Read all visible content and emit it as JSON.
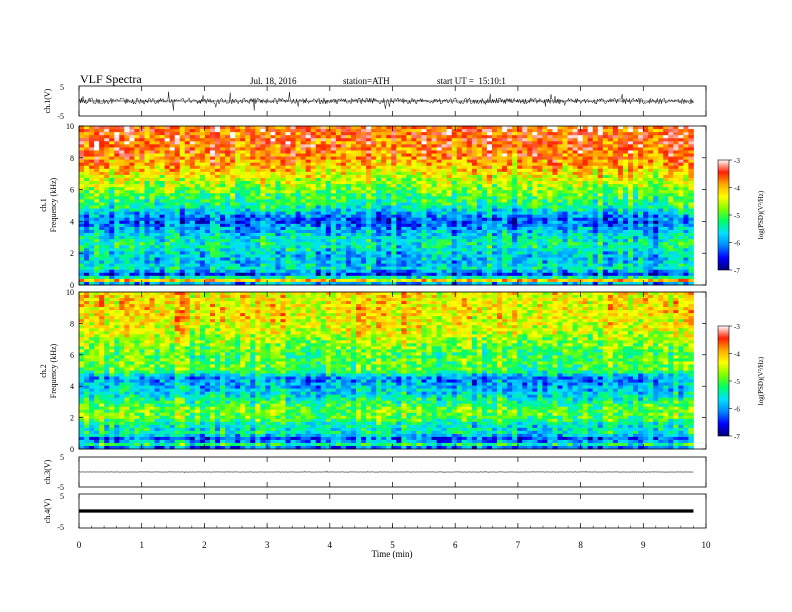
{
  "header": {
    "title": "VLF Spectra",
    "date": "Jul. 18, 2016",
    "station": "station=ATH",
    "start": "start UT =  15:10:1"
  },
  "chart_data": [
    {
      "type": "line",
      "panel": "ch1-waveform",
      "ylabel": "ch.1(V)",
      "ylim": [
        -5,
        5
      ],
      "yticks": [
        "5",
        "-5"
      ],
      "x": [
        0,
        1,
        2,
        3,
        4,
        5,
        6,
        7,
        8,
        9,
        9.8
      ],
      "values": [
        0,
        0,
        0,
        0,
        0,
        0,
        0,
        0,
        0,
        0,
        0
      ],
      "color": "#000000"
    },
    {
      "type": "heatmap",
      "panel": "ch1-spectrogram",
      "ylabel": "ch.1\nFrequency (kHz)",
      "ylabel_line1": "ch.1",
      "ylabel_line2": "Frequency (kHz)",
      "ylim": [
        0,
        10
      ],
      "yticks": [
        "0",
        "2",
        "4",
        "6",
        "8",
        "10"
      ],
      "x_range": [
        0,
        9.8
      ],
      "frequency_profile_logPSD": [
        {
          "f": 0.0,
          "v": -6.8
        },
        {
          "f": 0.3,
          "v": -4.0
        },
        {
          "f": 0.6,
          "v": -6.5
        },
        {
          "f": 1.0,
          "v": -5.6
        },
        {
          "f": 1.5,
          "v": -5.8
        },
        {
          "f": 2.0,
          "v": -5.7
        },
        {
          "f": 2.5,
          "v": -5.4
        },
        {
          "f": 3.0,
          "v": -5.6
        },
        {
          "f": 3.5,
          "v": -5.9
        },
        {
          "f": 4.0,
          "v": -6.3
        },
        {
          "f": 4.5,
          "v": -5.9
        },
        {
          "f": 5.0,
          "v": -5.3
        },
        {
          "f": 5.5,
          "v": -5.1
        },
        {
          "f": 6.0,
          "v": -4.9
        },
        {
          "f": 6.5,
          "v": -4.6
        },
        {
          "f": 7.0,
          "v": -4.3
        },
        {
          "f": 7.5,
          "v": -4.0
        },
        {
          "f": 8.0,
          "v": -3.8
        },
        {
          "f": 9.0,
          "v": -3.6
        },
        {
          "f": 10.0,
          "v": -3.6
        }
      ]
    },
    {
      "type": "heatmap",
      "panel": "ch2-spectrogram",
      "ylabel": "ch.2\nFrequency (kHz)",
      "ylabel_line1": "ch.2",
      "ylabel_line2": "Frequency (kHz)",
      "ylim": [
        0,
        10
      ],
      "yticks": [
        "0",
        "2",
        "4",
        "6",
        "8",
        "10"
      ],
      "x_range": [
        0,
        9.8
      ],
      "frequency_profile_logPSD": [
        {
          "f": 0.0,
          "v": -6.6
        },
        {
          "f": 0.3,
          "v": -5.2
        },
        {
          "f": 0.6,
          "v": -6.4
        },
        {
          "f": 1.0,
          "v": -5.4
        },
        {
          "f": 1.5,
          "v": -5.5
        },
        {
          "f": 2.0,
          "v": -4.9
        },
        {
          "f": 2.5,
          "v": -4.8
        },
        {
          "f": 3.0,
          "v": -5.2
        },
        {
          "f": 3.5,
          "v": -5.6
        },
        {
          "f": 4.0,
          "v": -5.8
        },
        {
          "f": 4.5,
          "v": -6.0
        },
        {
          "f": 5.0,
          "v": -5.0
        },
        {
          "f": 5.5,
          "v": -4.9
        },
        {
          "f": 6.0,
          "v": -5.0
        },
        {
          "f": 6.5,
          "v": -4.8
        },
        {
          "f": 7.0,
          "v": -4.6
        },
        {
          "f": 7.5,
          "v": -4.4
        },
        {
          "f": 8.0,
          "v": -4.3
        },
        {
          "f": 9.0,
          "v": -4.2
        },
        {
          "f": 10.0,
          "v": -4.2
        }
      ]
    },
    {
      "type": "line",
      "panel": "ch3-waveform",
      "ylabel": "ch.3(V)",
      "ylim": [
        -5,
        5
      ],
      "yticks": [
        "5",
        "-5"
      ],
      "x": [
        0,
        1,
        2,
        3,
        4,
        5,
        6,
        7,
        8,
        9,
        9.8
      ],
      "values": [
        0,
        0,
        0,
        0,
        0,
        0,
        0,
        0,
        0,
        0,
        0
      ],
      "color": "#444444"
    },
    {
      "type": "line",
      "panel": "ch4-waveform",
      "ylabel": "ch.4(V)",
      "ylim": [
        -5,
        5
      ],
      "yticks": [
        "5",
        "-5"
      ],
      "x": [
        0,
        1,
        2,
        3,
        4,
        5,
        6,
        7,
        8,
        9,
        9.8
      ],
      "values": [
        0,
        0,
        0,
        0,
        0,
        0,
        0,
        0,
        0,
        0,
        0
      ],
      "color": "#000000"
    }
  ],
  "x_axis": {
    "label": "Time (min)",
    "xlim": [
      0,
      10
    ],
    "ticks": [
      "0",
      "1",
      "2",
      "3",
      "4",
      "5",
      "6",
      "7",
      "8",
      "9",
      "10"
    ]
  },
  "colorbar": {
    "label": "log(PSD)(V²/Hz)",
    "range": [
      -7,
      -3
    ],
    "ticks": [
      "-3",
      "-4",
      "-5",
      "-6",
      "-7"
    ],
    "colormap": [
      "#000078",
      "#0000ff",
      "#0088ff",
      "#00e0ff",
      "#00ff66",
      "#80ff00",
      "#ffff00",
      "#ffaa00",
      "#ff2000",
      "#ffffff"
    ]
  }
}
